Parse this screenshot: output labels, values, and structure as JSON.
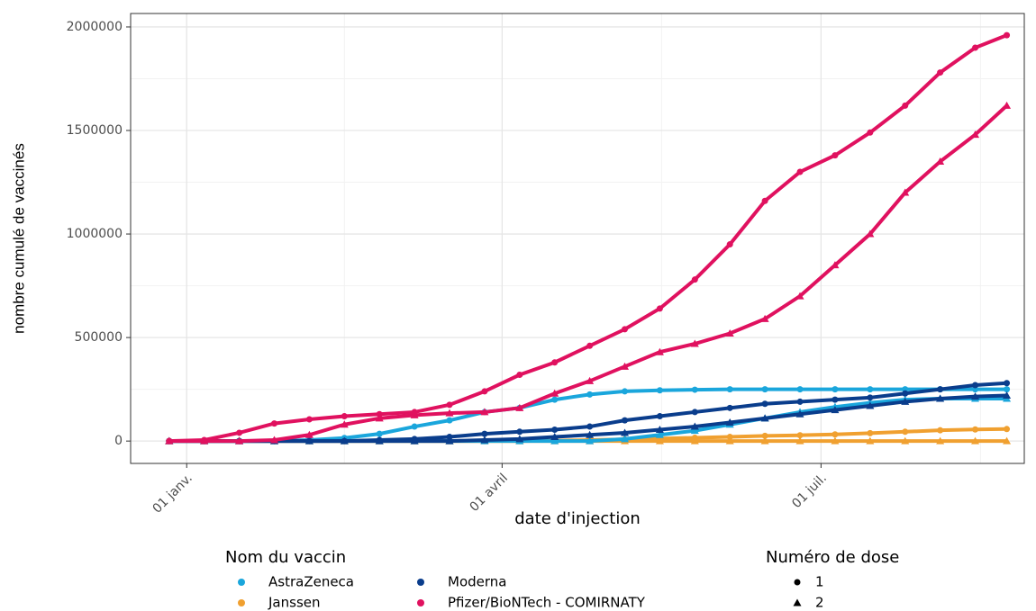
{
  "chart_data": {
    "type": "line",
    "x_label": "date d'injection",
    "y_label": "nombre cumulé de vaccinés",
    "x": [
      -5,
      5,
      15,
      25,
      35,
      45,
      55,
      65,
      75,
      85,
      95,
      105,
      115,
      125,
      135,
      145,
      155,
      165,
      175,
      185,
      195,
      205,
      215,
      225,
      234
    ],
    "xlim": [
      -16,
      239
    ],
    "xticks": [
      {
        "value": 0,
        "label": "01 janv."
      },
      {
        "value": 90,
        "label": "01 avril"
      },
      {
        "value": 181,
        "label": "01 juil."
      }
    ],
    "ylim": [
      -108000,
      2065000
    ],
    "yticks": [
      0,
      500000,
      1000000,
      1500000,
      2000000
    ],
    "grid": true,
    "legend": {
      "vaccine": {
        "title": "Nom du vaccin",
        "entries": [
          {
            "name": "AstraZeneca",
            "color": "#1aa6dc"
          },
          {
            "name": "Janssen",
            "color": "#f0a030"
          },
          {
            "name": "Moderna",
            "color": "#0a3d8c"
          },
          {
            "name": "Pfizer/BioNTech - COMIRNATY",
            "color": "#e0115f"
          }
        ]
      },
      "dose": {
        "title": "Numéro de dose",
        "entries": [
          {
            "name": "1",
            "marker": "circle"
          },
          {
            "name": "2",
            "marker": "triangle"
          }
        ]
      }
    },
    "series": [
      {
        "vaccine": "Janssen",
        "dose": "1",
        "values": [
          0,
          0,
          0,
          0,
          0,
          0,
          0,
          0,
          0,
          0,
          0,
          2000,
          5000,
          8000,
          12000,
          16000,
          20000,
          25000,
          28000,
          32000,
          38000,
          45000,
          52000,
          56000,
          58000
        ]
      },
      {
        "vaccine": "Janssen",
        "dose": "2",
        "values": [
          0,
          0,
          0,
          0,
          0,
          0,
          0,
          0,
          0,
          0,
          0,
          0,
          0,
          0,
          0,
          0,
          0,
          0,
          0,
          0,
          0,
          0,
          0,
          0,
          0
        ]
      },
      {
        "vaccine": "AstraZeneca",
        "dose": "2",
        "values": [
          0,
          0,
          0,
          0,
          0,
          0,
          0,
          0,
          0,
          0,
          0,
          0,
          0,
          10000,
          30000,
          50000,
          80000,
          110000,
          140000,
          165000,
          185000,
          200000,
          205000,
          205000,
          205000
        ]
      },
      {
        "vaccine": "AstraZeneca",
        "dose": "1",
        "values": [
          0,
          0,
          0,
          0,
          5000,
          15000,
          35000,
          70000,
          100000,
          140000,
          160000,
          200000,
          225000,
          240000,
          245000,
          248000,
          250000,
          250000,
          250000,
          250000,
          250000,
          250000,
          250000,
          250000,
          250000
        ]
      },
      {
        "vaccine": "Moderna",
        "dose": "2",
        "values": [
          0,
          0,
          0,
          0,
          0,
          0,
          0,
          0,
          0,
          5000,
          10000,
          20000,
          30000,
          40000,
          55000,
          70000,
          90000,
          110000,
          130000,
          150000,
          170000,
          190000,
          205000,
          215000,
          220000
        ]
      },
      {
        "vaccine": "Moderna",
        "dose": "1",
        "values": [
          0,
          0,
          0,
          0,
          0,
          0,
          5000,
          10000,
          20000,
          35000,
          45000,
          55000,
          70000,
          100000,
          120000,
          140000,
          160000,
          180000,
          190000,
          200000,
          210000,
          230000,
          250000,
          270000,
          280000
        ]
      },
      {
        "vaccine": "Pfizer/BioNTech - COMIRNATY",
        "dose": "2",
        "values": [
          0,
          0,
          0,
          5000,
          30000,
          80000,
          110000,
          125000,
          135000,
          140000,
          160000,
          230000,
          290000,
          360000,
          430000,
          470000,
          520000,
          590000,
          700000,
          850000,
          1000000,
          1200000,
          1350000,
          1480000,
          1620000
        ]
      },
      {
        "vaccine": "Pfizer/BioNTech - COMIRNATY",
        "dose": "1",
        "values": [
          0,
          5000,
          40000,
          85000,
          105000,
          120000,
          130000,
          140000,
          175000,
          240000,
          320000,
          380000,
          460000,
          540000,
          640000,
          780000,
          950000,
          1160000,
          1300000,
          1380000,
          1490000,
          1620000,
          1780000,
          1900000,
          1960000
        ]
      }
    ]
  }
}
